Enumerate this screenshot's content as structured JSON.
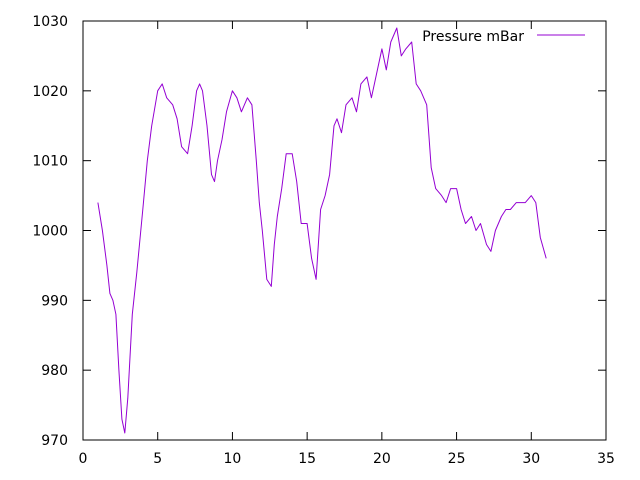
{
  "chart_data": {
    "type": "line",
    "title": "",
    "xlabel": "",
    "ylabel": "",
    "xlim": [
      0,
      35
    ],
    "ylim": [
      970,
      1030
    ],
    "xticks": [
      0,
      5,
      10,
      15,
      20,
      25,
      30,
      35
    ],
    "yticks": [
      970,
      980,
      990,
      1000,
      1010,
      1020,
      1030
    ],
    "grid": false,
    "legend_position": "top-right",
    "series": [
      {
        "name": "Pressure mBar",
        "color": "#9400d3",
        "x": [
          1.0,
          1.3,
          1.6,
          1.8,
          2.0,
          2.2,
          2.4,
          2.6,
          2.8,
          3.0,
          3.3,
          3.6,
          4.0,
          4.3,
          4.6,
          5.0,
          5.3,
          5.6,
          6.0,
          6.3,
          6.6,
          7.0,
          7.3,
          7.6,
          7.8,
          8.0,
          8.3,
          8.6,
          8.8,
          9.0,
          9.3,
          9.6,
          10.0,
          10.3,
          10.6,
          11.0,
          11.3,
          11.6,
          11.8,
          12.0,
          12.3,
          12.6,
          12.8,
          13.0,
          13.3,
          13.6,
          14.0,
          14.3,
          14.6,
          15.0,
          15.3,
          15.6,
          15.9,
          16.2,
          16.5,
          16.8,
          17.0,
          17.3,
          17.6,
          18.0,
          18.3,
          18.6,
          19.0,
          19.3,
          19.6,
          20.0,
          20.3,
          20.6,
          21.0,
          21.3,
          21.6,
          22.0,
          22.3,
          22.6,
          23.0,
          23.3,
          23.6,
          24.0,
          24.3,
          24.6,
          25.0,
          25.3,
          25.6,
          26.0,
          26.3,
          26.6,
          27.0,
          27.3,
          27.6,
          28.0,
          28.3,
          28.6,
          29.0,
          29.3,
          29.6,
          30.0,
          30.3,
          30.6,
          31.0
        ],
        "y": [
          1004,
          1000,
          995,
          991,
          990,
          988,
          980,
          973,
          971,
          976,
          988,
          994,
          1003,
          1010,
          1015,
          1020,
          1021,
          1019,
          1018,
          1016,
          1012,
          1011,
          1015,
          1020,
          1021,
          1020,
          1015,
          1008,
          1007,
          1010,
          1013,
          1017,
          1020,
          1019,
          1017,
          1019,
          1018,
          1010,
          1004,
          1000,
          993,
          992,
          998,
          1002,
          1006,
          1011,
          1011,
          1007,
          1001,
          1001,
          996,
          993,
          1003,
          1005,
          1008,
          1015,
          1016,
          1014,
          1018,
          1019,
          1017,
          1021,
          1022,
          1019,
          1022,
          1026,
          1023,
          1027,
          1029,
          1025,
          1026,
          1027,
          1021,
          1020,
          1018,
          1009,
          1006,
          1005,
          1004,
          1006,
          1006,
          1003,
          1001,
          1002,
          1000,
          1001,
          998,
          997,
          1000,
          1002,
          1003,
          1003,
          1004,
          1004,
          1004,
          1005,
          1004,
          999,
          996
        ]
      }
    ]
  }
}
